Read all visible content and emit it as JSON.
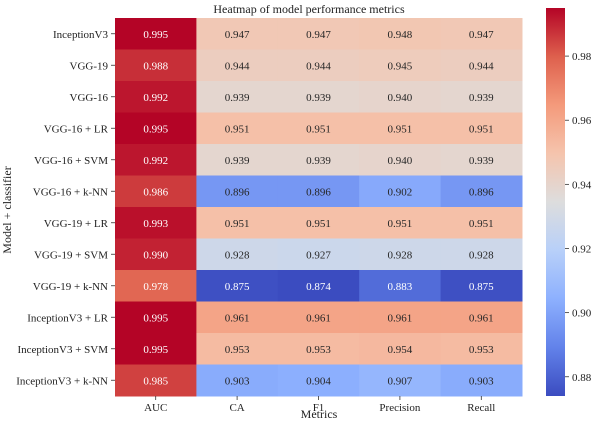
{
  "chart_data": {
    "type": "heatmap",
    "title": "Heatmap of model performance metrics",
    "xlabel": "Metrics",
    "ylabel": "Model + classifier",
    "columns": [
      "AUC",
      "CA",
      "F1",
      "Precision",
      "Recall"
    ],
    "rows": [
      "InceptionV3",
      "VGG-19",
      "VGG-16",
      "VGG-16 + LR",
      "VGG-16 + SVM",
      "VGG-16 + k-NN",
      "VGG-19 + LR",
      "VGG-19 + SVM",
      "VGG-19 + k-NN",
      "InceptionV3 + LR",
      "InceptionV3 + SVM",
      "InceptionV3 + k-NN"
    ],
    "values": [
      [
        0.995,
        0.947,
        0.947,
        0.948,
        0.947
      ],
      [
        0.988,
        0.944,
        0.944,
        0.945,
        0.944
      ],
      [
        0.992,
        0.939,
        0.939,
        0.94,
        0.939
      ],
      [
        0.995,
        0.951,
        0.951,
        0.951,
        0.951
      ],
      [
        0.992,
        0.939,
        0.939,
        0.94,
        0.939
      ],
      [
        0.986,
        0.896,
        0.896,
        0.902,
        0.896
      ],
      [
        0.993,
        0.951,
        0.951,
        0.951,
        0.951
      ],
      [
        0.99,
        0.928,
        0.927,
        0.928,
        0.928
      ],
      [
        0.978,
        0.875,
        0.874,
        0.883,
        0.875
      ],
      [
        0.995,
        0.961,
        0.961,
        0.961,
        0.961
      ],
      [
        0.995,
        0.953,
        0.953,
        0.954,
        0.953
      ],
      [
        0.985,
        0.903,
        0.904,
        0.907,
        0.903
      ]
    ],
    "colormap": "coolwarm",
    "vmin": 0.874,
    "vmax": 0.995,
    "colorbar_ticks": [
      0.88,
      0.9,
      0.92,
      0.94,
      0.96,
      0.98
    ]
  }
}
